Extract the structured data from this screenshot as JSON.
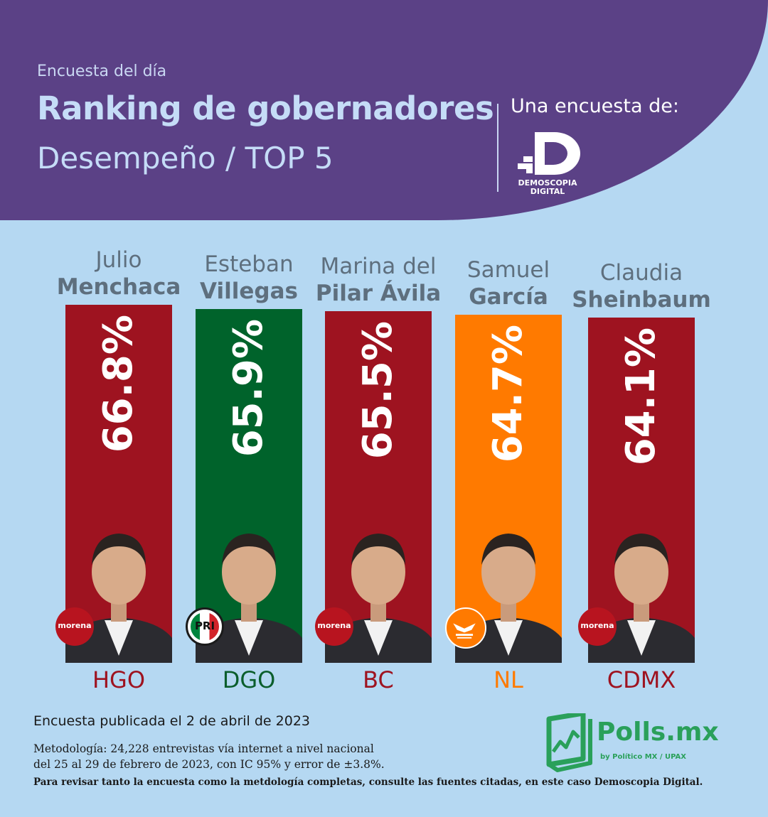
{
  "header": {
    "kicker": "Encuesta del día",
    "title": "Ranking de gobernadores",
    "subtitle": "Desempeño / TOP 5",
    "poll_by": "Una encuesta de:",
    "logo_name_line1": "DEMOSCOPIA",
    "logo_name_line2": "DIGITAL"
  },
  "colors": {
    "header_bg": "#5b4186",
    "page_bg": "#b5d8f2",
    "morena": "#9e1320",
    "pri": "#00632b",
    "mc": "#ff7a00"
  },
  "chart_data": {
    "type": "bar",
    "orientation": "vertical",
    "value_unit": "%",
    "categories": [
      "HGO",
      "DGO",
      "BC",
      "NL",
      "CDMX"
    ],
    "values": [
      66.8,
      65.9,
      65.5,
      64.7,
      64.1
    ],
    "value_labels": [
      "66.8%",
      "65.9%",
      "65.5%",
      "64.7%",
      "64.1%"
    ],
    "bars": [
      {
        "first": "Julio",
        "last": "Menchaca",
        "state": "HGO",
        "value": 66.8,
        "label": "66.8%",
        "party": "morena",
        "color": "#9e1320",
        "state_color": "#9e1320"
      },
      {
        "first": "Esteban",
        "last": "Villegas",
        "state": "DGO",
        "value": 65.9,
        "label": "65.9%",
        "party": "pri",
        "color": "#00632b",
        "state_color": "#0b5e2c"
      },
      {
        "first": "Marina del",
        "last": "Pilar Ávila",
        "state": "BC",
        "value": 65.5,
        "label": "65.5%",
        "party": "morena",
        "color": "#9e1320",
        "state_color": "#9e1320"
      },
      {
        "first": "Samuel",
        "last": "García",
        "state": "NL",
        "value": 64.7,
        "label": "64.7%",
        "party": "mc",
        "color": "#ff7a00",
        "state_color": "#ff7a00"
      },
      {
        "first": "Claudia",
        "last": "Sheinbaum",
        "state": "CDMX",
        "value": 64.1,
        "label": "64.1%",
        "party": "morena",
        "color": "#9e1320",
        "state_color": "#9e1320"
      }
    ]
  },
  "party_logos": {
    "morena": "morena",
    "pri": "PRI"
  },
  "footer": {
    "published": "Encuesta publicada el 2 de abril de 2023",
    "methodology_line1": "Metodología: 24,228 entrevistas vía internet a nivel nacional",
    "methodology_line2": "del 25 al 29 de febrero de 2023, con IC 95% y error de ±3.8%.",
    "note": "Para revisar tanto la encuesta como la metdología completas, consulte las fuentes citadas, en este caso Demoscopia Digital.",
    "brand": "Polls.mx",
    "brand_tag": "by Político MX / UPAX"
  }
}
